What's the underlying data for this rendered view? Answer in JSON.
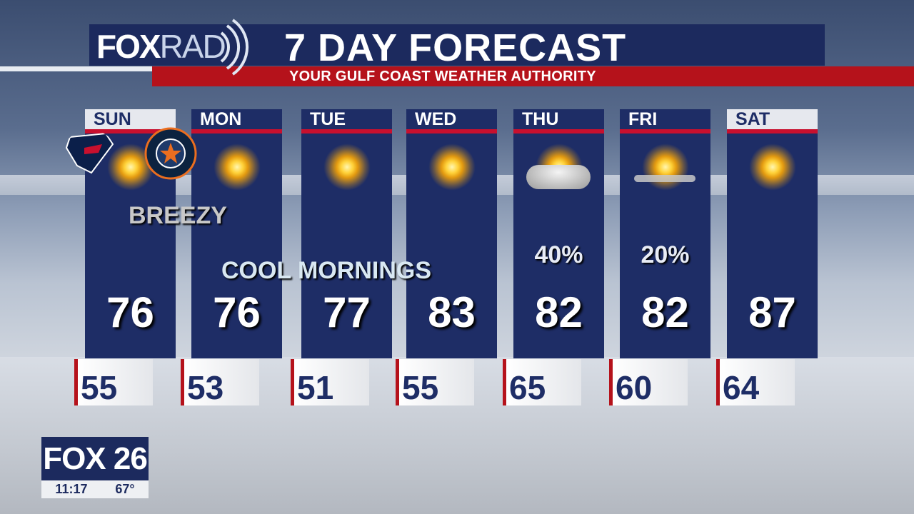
{
  "header": {
    "logo": "FOX",
    "logo_suffix": "RAD",
    "title": "7 DAY FORECAST",
    "subtitle": "YOUR GULF COAST WEATHER AUTHORITY"
  },
  "days": [
    {
      "day": "SUN",
      "icon": "sunny-icon",
      "high": "76",
      "low": "55",
      "highlight": true
    },
    {
      "day": "MON",
      "icon": "sunny-icon",
      "high": "76",
      "low": "53"
    },
    {
      "day": "TUE",
      "icon": "sunny-icon",
      "high": "77",
      "low": "51"
    },
    {
      "day": "WED",
      "icon": "mostly-sunny-icon",
      "high": "83",
      "low": "55"
    },
    {
      "day": "THU",
      "icon": "cloudy-icon",
      "high": "82",
      "low": "65",
      "precip": "40%"
    },
    {
      "day": "FRI",
      "icon": "partly-cloudy-icon",
      "high": "82",
      "low": "60",
      "precip": "20%"
    },
    {
      "day": "SAT",
      "icon": "mostly-sunny-icon",
      "high": "87",
      "low": "64",
      "highlight": true
    }
  ],
  "notes": {
    "breezy": "BREEZY",
    "cool": "COOL MORNINGS"
  },
  "logos": {
    "texans": "Houston Texans logo",
    "astros": "HOUSTON ASTROS"
  },
  "station": {
    "name": "FOX 26",
    "time": "11:17",
    "temp": "67°"
  }
}
